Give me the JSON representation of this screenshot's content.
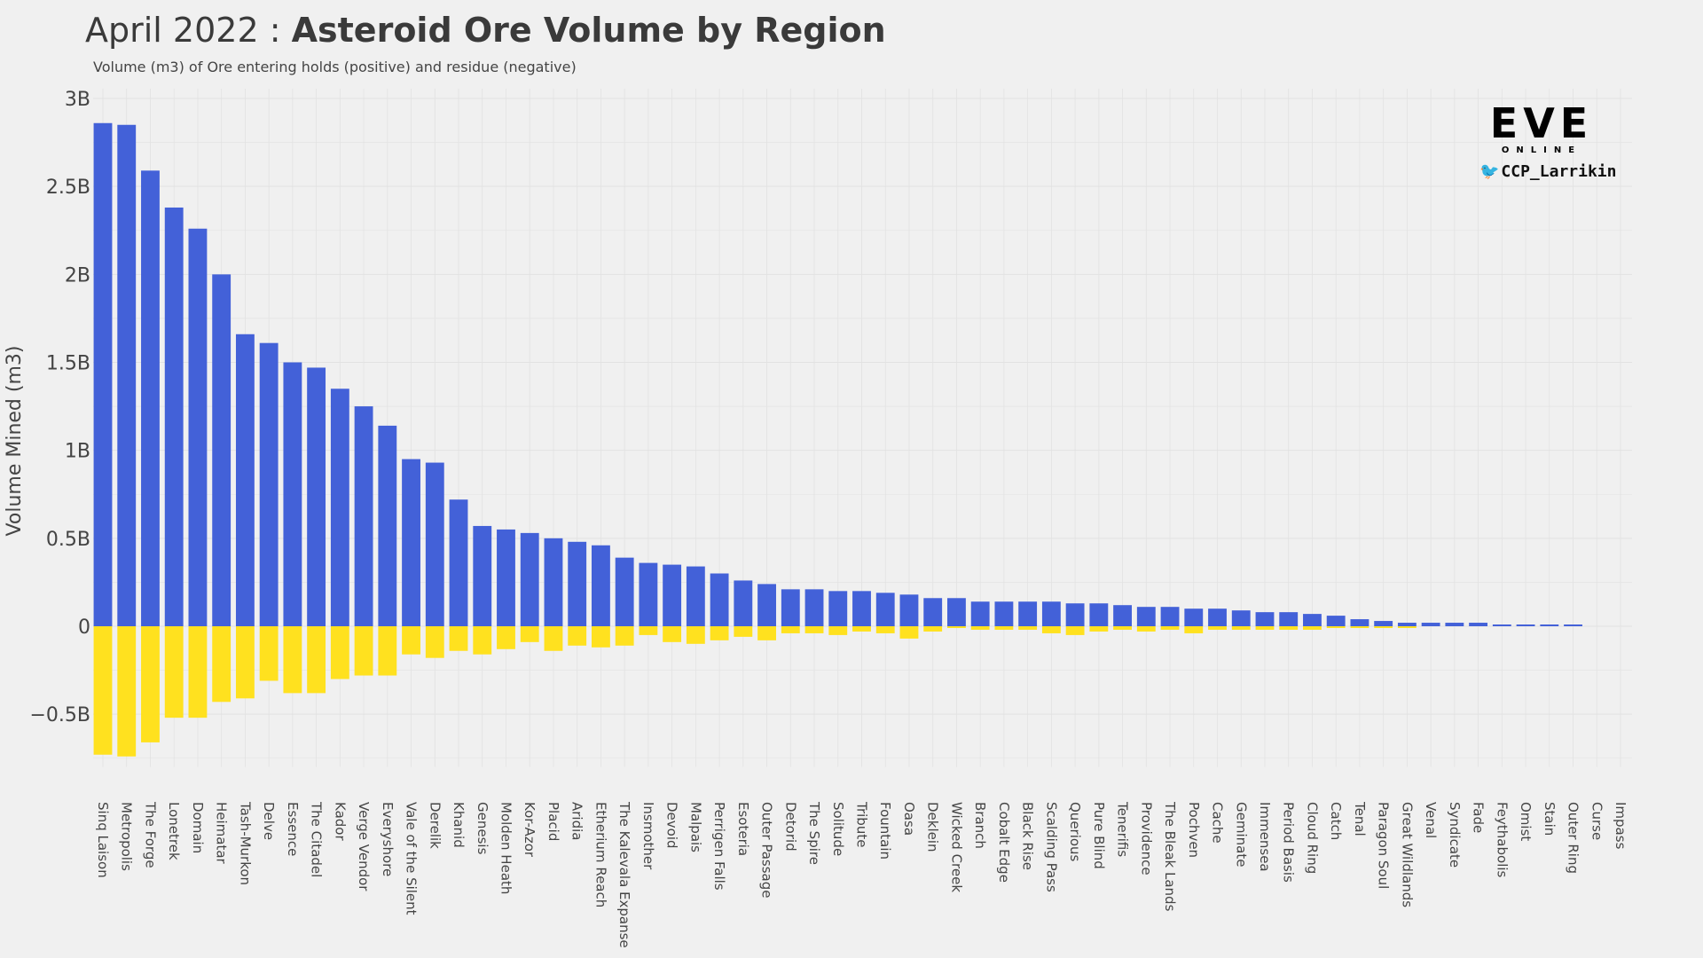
{
  "header": {
    "title_light": "April 2022 : ",
    "title_bold": "Asteroid Ore Volume by Region",
    "subtitle": "Volume (m3) of Ore entering holds (positive) and residue (negative)"
  },
  "branding": {
    "logo_text": "EVE",
    "logo_subtext": "ONLINE",
    "twitter_handle": "CCP_Larrikin",
    "bird_icon": "twitter-bird-icon"
  },
  "colors": {
    "positive": "#4361d8",
    "negative": "#ffe11f",
    "background": "#f0f0f0",
    "grid": "#e2e2e2"
  },
  "chart_data": {
    "type": "bar",
    "title": "Asteroid Ore Volume by Region",
    "xlabel": "",
    "ylabel": "Volume Mined (m3)",
    "ylim": [
      -0.8,
      3.0
    ],
    "yticks": [
      -0.5,
      0,
      0.5,
      1,
      1.5,
      2,
      2.5,
      3
    ],
    "ytick_labels": [
      "−0.5B",
      "0",
      "0.5B",
      "1B",
      "1.5B",
      "2B",
      "2.5B",
      "3B"
    ],
    "grid": true,
    "unit": "billion m3",
    "categories": [
      "Sinq Laison",
      "Metropolis",
      "The Forge",
      "Lonetrek",
      "Domain",
      "Heimatar",
      "Tash-Murkon",
      "Delve",
      "Essence",
      "The Citadel",
      "Kador",
      "Verge Vendor",
      "Everyshore",
      "Vale of the Silent",
      "Derelik",
      "Khanid",
      "Genesis",
      "Molden Heath",
      "Kor-Azor",
      "Placid",
      "Aridia",
      "Etherium Reach",
      "The Kalevala Expanse",
      "Insmother",
      "Devoid",
      "Malpais",
      "Perrigen Falls",
      "Esoteria",
      "Outer Passage",
      "Detorid",
      "The Spire",
      "Solitude",
      "Tribute",
      "Fountain",
      "Oasa",
      "Deklein",
      "Wicked Creek",
      "Branch",
      "Cobalt Edge",
      "Black Rise",
      "Scalding Pass",
      "Querious",
      "Pure Blind",
      "Tenerifis",
      "Providence",
      "The Bleak Lands",
      "Pochven",
      "Cache",
      "Geminate",
      "Immensea",
      "Period Basis",
      "Cloud Ring",
      "Catch",
      "Tenal",
      "Paragon Soul",
      "Great Wildlands",
      "Venal",
      "Syndicate",
      "Fade",
      "Feythabolis",
      "Omist",
      "Stain",
      "Outer Ring",
      "Curse",
      "Impass"
    ],
    "series": [
      {
        "name": "positive",
        "values": [
          2.86,
          2.85,
          2.59,
          2.38,
          2.26,
          2.0,
          1.66,
          1.61,
          1.5,
          1.47,
          1.35,
          1.25,
          1.14,
          0.95,
          0.93,
          0.72,
          0.57,
          0.55,
          0.53,
          0.5,
          0.48,
          0.46,
          0.39,
          0.36,
          0.35,
          0.34,
          0.3,
          0.26,
          0.24,
          0.21,
          0.21,
          0.2,
          0.2,
          0.19,
          0.18,
          0.16,
          0.16,
          0.14,
          0.14,
          0.14,
          0.14,
          0.13,
          0.13,
          0.12,
          0.11,
          0.11,
          0.1,
          0.1,
          0.09,
          0.08,
          0.08,
          0.07,
          0.06,
          0.04,
          0.03,
          0.02,
          0.02,
          0.02,
          0.02,
          0.01,
          0.01,
          0.01,
          0.01,
          0.0,
          0.0
        ]
      },
      {
        "name": "negative",
        "values": [
          -0.73,
          -0.74,
          -0.66,
          -0.52,
          -0.52,
          -0.43,
          -0.41,
          -0.31,
          -0.38,
          -0.38,
          -0.3,
          -0.28,
          -0.28,
          -0.16,
          -0.18,
          -0.14,
          -0.16,
          -0.13,
          -0.09,
          -0.14,
          -0.11,
          -0.12,
          -0.11,
          -0.05,
          -0.09,
          -0.1,
          -0.08,
          -0.06,
          -0.08,
          -0.04,
          -0.04,
          -0.05,
          -0.03,
          -0.04,
          -0.07,
          -0.03,
          -0.01,
          -0.02,
          -0.02,
          -0.02,
          -0.04,
          -0.05,
          -0.03,
          -0.02,
          -0.03,
          -0.02,
          -0.04,
          -0.02,
          -0.02,
          -0.02,
          -0.02,
          -0.02,
          -0.01,
          -0.01,
          -0.01,
          -0.01,
          0,
          0,
          0,
          0,
          0,
          0,
          0,
          0,
          0
        ]
      }
    ]
  }
}
